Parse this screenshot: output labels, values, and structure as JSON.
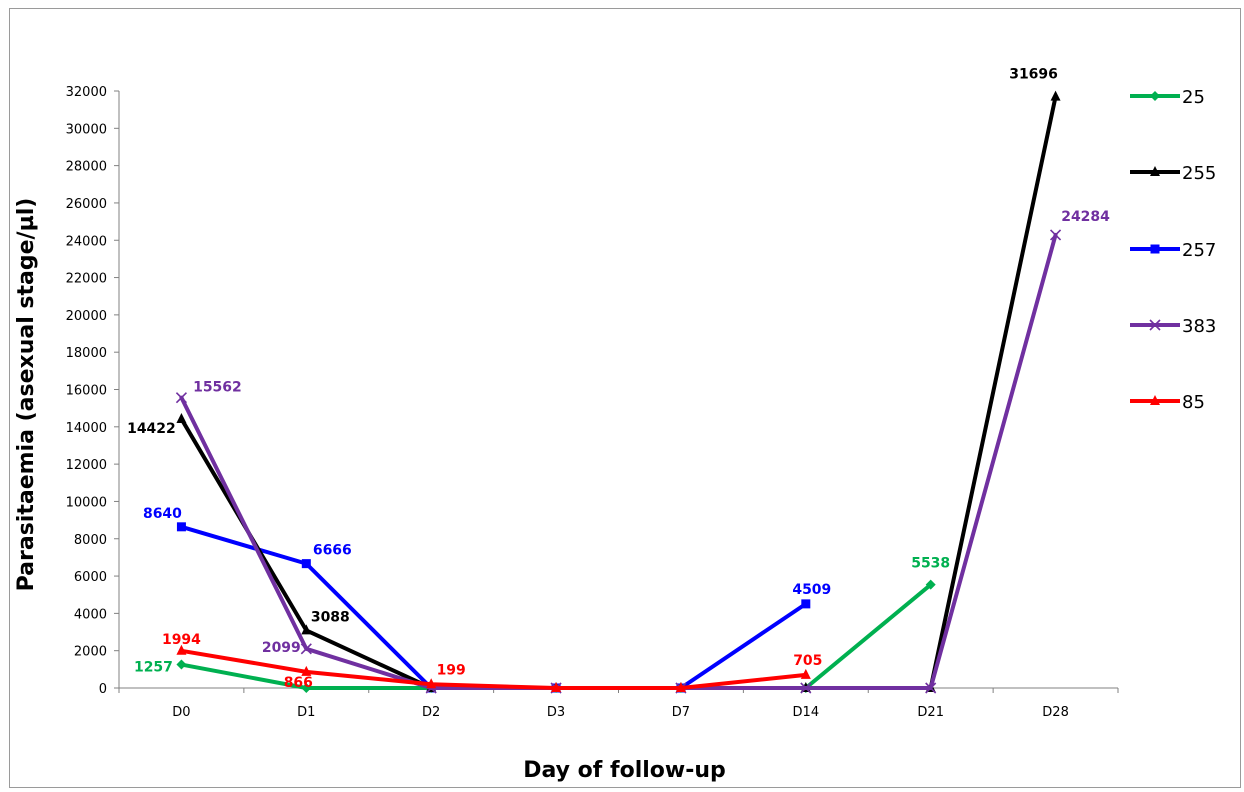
{
  "chart_data": {
    "type": "line",
    "categories": [
      "D0",
      "D1",
      "D2",
      "D3",
      "D7",
      "D14",
      "D21",
      "D28"
    ],
    "xlabel": "Day of follow-up",
    "ylabel": "Parasitaemia (asexual stage/µl)",
    "ylim": [
      0,
      32000
    ],
    "yticks": [
      0,
      2000,
      4000,
      6000,
      8000,
      10000,
      12000,
      14000,
      16000,
      18000,
      20000,
      22000,
      24000,
      26000,
      28000,
      30000,
      32000
    ],
    "grid": false,
    "legend_position": "right",
    "series": [
      {
        "name": "25",
        "color": "#00b050",
        "marker": "diamond",
        "values": [
          1257,
          0,
          0,
          0,
          0,
          0,
          5538,
          null
        ],
        "labels": [
          "1257",
          null,
          null,
          null,
          null,
          null,
          "5538",
          null
        ]
      },
      {
        "name": "255",
        "color": "#000000",
        "marker": "triangle",
        "values": [
          14422,
          3088,
          0,
          0,
          0,
          0,
          0,
          31696
        ],
        "labels": [
          "14422",
          "3088",
          null,
          null,
          null,
          null,
          null,
          "31696"
        ]
      },
      {
        "name": "257",
        "color": "#0000ff",
        "marker": "square",
        "values": [
          8640,
          6666,
          0,
          0,
          0,
          4509,
          null,
          null
        ],
        "labels": [
          "8640",
          "6666",
          null,
          null,
          null,
          "4509",
          null,
          null
        ]
      },
      {
        "name": "383",
        "color": "#7030a0",
        "marker": "x",
        "values": [
          15562,
          2099,
          0,
          0,
          0,
          0,
          0,
          24284
        ],
        "labels": [
          "15562",
          "2099",
          null,
          null,
          null,
          null,
          null,
          "24284"
        ]
      },
      {
        "name": "85",
        "color": "#ff0000",
        "marker": "triangle",
        "values": [
          1994,
          866,
          199,
          0,
          0,
          705,
          null,
          null
        ],
        "labels": [
          "1994",
          "866",
          "199",
          null,
          null,
          "705",
          null,
          null
        ]
      }
    ]
  }
}
